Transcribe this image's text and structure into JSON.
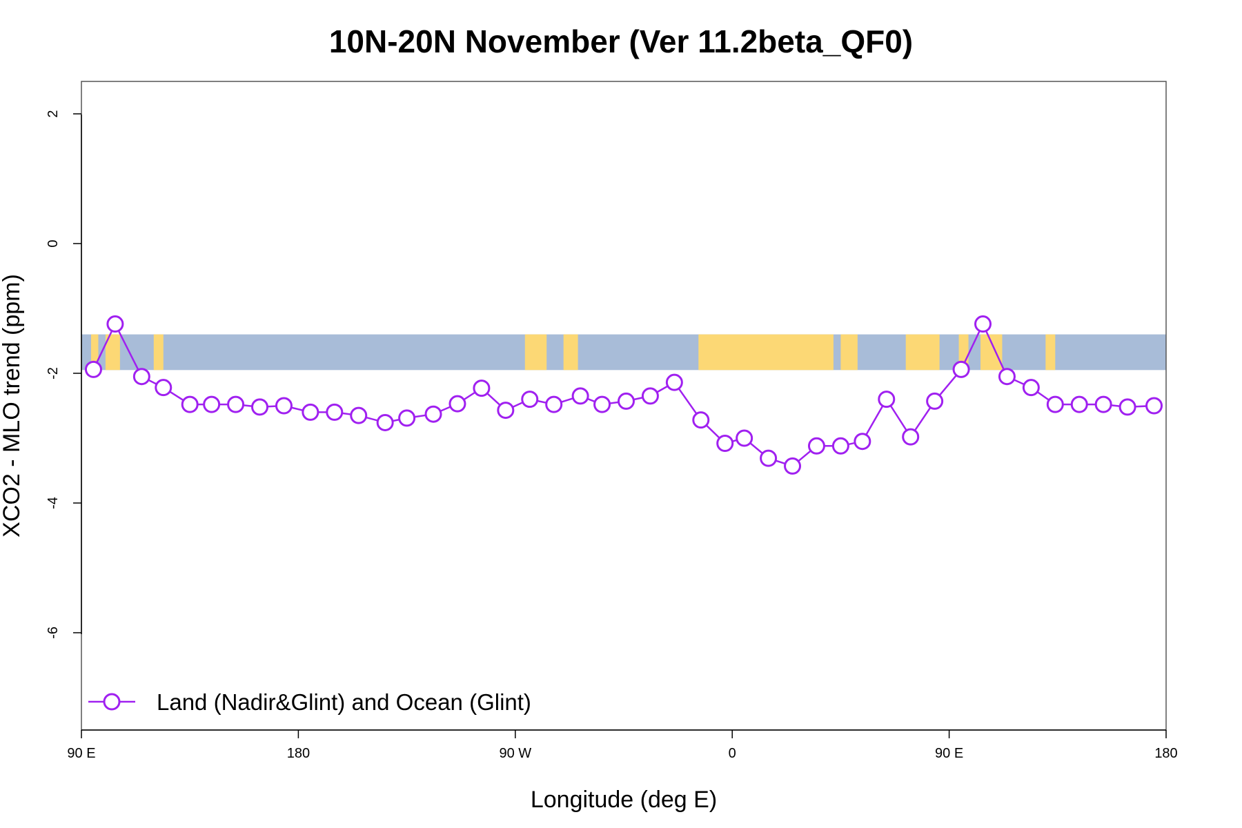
{
  "chart_data": {
    "type": "line",
    "title": "10N-20N November (Ver 11.2beta_QF0)",
    "xlabel": "Longitude (deg E)",
    "ylabel": "XCO2 - MLO trend (ppm)",
    "xlim": [
      90,
      540
    ],
    "ylim": [
      -7.5,
      2.5
    ],
    "x_ticks": [
      {
        "value": 90,
        "label": "90 E"
      },
      {
        "value": 180,
        "label": "180"
      },
      {
        "value": 270,
        "label": "90 W"
      },
      {
        "value": 360,
        "label": "0"
      },
      {
        "value": 450,
        "label": "90 E"
      },
      {
        "value": 540,
        "label": "180"
      }
    ],
    "y_ticks": [
      {
        "value": 2,
        "label": "2"
      },
      {
        "value": 0,
        "label": "0"
      },
      {
        "value": -2,
        "label": "-2"
      },
      {
        "value": -4,
        "label": "-4"
      },
      {
        "value": -6,
        "label": "-6"
      }
    ],
    "map_strip": {
      "description_latitudes": "10N-20N",
      "y_range": [
        -1.95,
        -1.4
      ],
      "ocean_color": "#a8bcd8",
      "land_color": "#fcd875",
      "land_segments": [
        [
          94,
          97
        ],
        [
          100,
          106
        ],
        [
          120,
          124
        ],
        [
          274,
          283
        ],
        [
          290,
          296
        ],
        [
          346,
          402
        ],
        [
          405,
          412
        ],
        [
          432,
          446
        ],
        [
          454,
          458
        ],
        [
          463,
          472
        ],
        [
          490,
          494
        ]
      ]
    },
    "series": [
      {
        "name": "Land (Nadir&Glint) and Ocean (Glint)",
        "color": "#a020f0",
        "x": [
          95,
          104,
          115,
          124,
          135,
          144,
          154,
          164,
          174,
          185,
          195,
          205,
          216,
          225,
          236,
          246,
          256,
          266,
          276,
          286,
          297,
          306,
          316,
          326,
          336,
          347,
          357,
          365,
          375,
          385,
          395,
          405,
          414,
          424,
          434,
          444,
          455,
          464,
          474,
          484,
          494,
          504,
          514,
          524,
          535
        ],
        "values": [
          -1.94,
          -1.24,
          -2.05,
          -2.22,
          -2.48,
          -2.48,
          -2.48,
          -2.52,
          -2.5,
          -2.6,
          -2.6,
          -2.65,
          -2.76,
          -2.69,
          -2.63,
          -2.47,
          -2.23,
          -2.57,
          -2.4,
          -2.48,
          -2.35,
          -2.48,
          -2.43,
          -2.35,
          -2.14,
          -2.72,
          -3.08,
          -3.0,
          -3.31,
          -3.43,
          -3.12,
          -3.12,
          -3.05,
          -2.4,
          -2.98,
          -2.43,
          -1.94,
          -1.24,
          -2.05,
          -2.22,
          -2.48,
          -2.48,
          -2.48,
          -2.52,
          -2.5
        ]
      }
    ],
    "legend": {
      "position": "bottom-left",
      "label": "Land (Nadir&Glint) and Ocean (Glint)"
    }
  }
}
